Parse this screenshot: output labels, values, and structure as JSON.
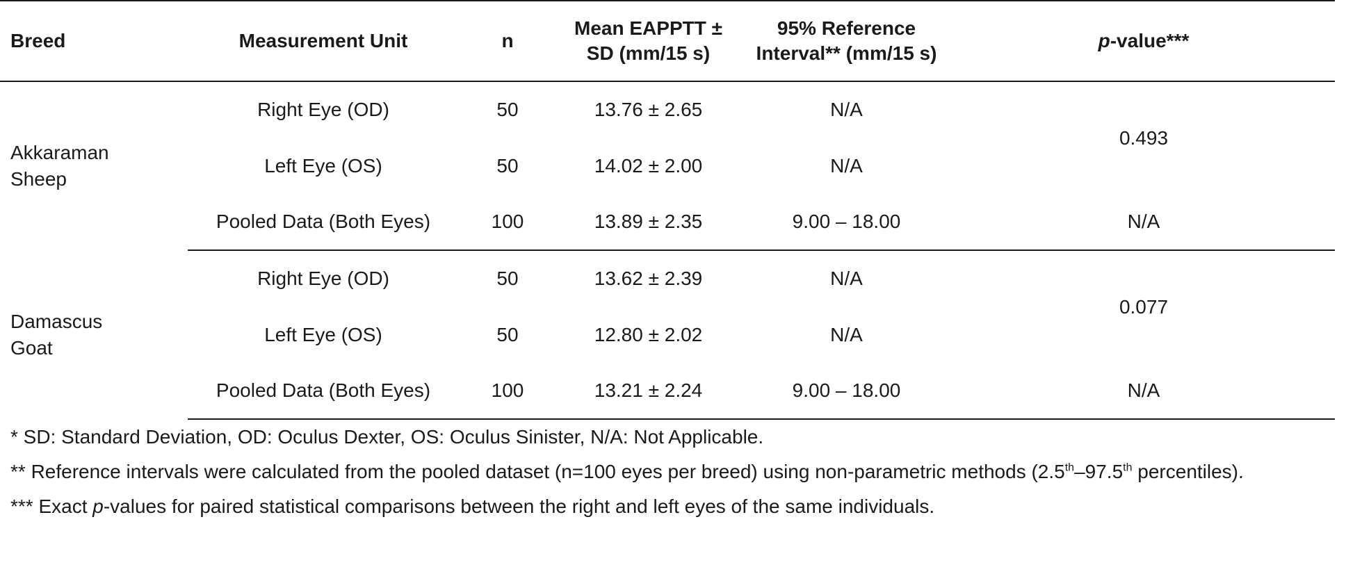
{
  "table": {
    "headers": {
      "breed": "Breed",
      "unit": "Measurement Unit",
      "n": "n",
      "mean_line1": "Mean EAPPTT ±",
      "mean_line2": "SD (mm/15 s)",
      "ri_line1": "95% Reference",
      "ri_line2": "Interval** (mm/15 s)",
      "p_italic": "p",
      "p_rest": "-value***"
    },
    "groups": [
      {
        "breed_line1": "Akkaraman",
        "breed_line2": "Sheep",
        "p_paired": "0.493",
        "rows": [
          {
            "unit": "Right Eye (OD)",
            "n": "50",
            "mean": "13.76 ± 2.65",
            "ri": "N/A"
          },
          {
            "unit": "Left Eye (OS)",
            "n": "50",
            "mean": "14.02 ± 2.00",
            "ri": "N/A"
          },
          {
            "unit": "Pooled Data (Both Eyes)",
            "n": "100",
            "mean": "13.89 ± 2.35",
            "ri": "9.00 – 18.00",
            "p": "N/A"
          }
        ]
      },
      {
        "breed_line1": "Damascus",
        "breed_line2": "Goat",
        "p_paired": "0.077",
        "rows": [
          {
            "unit": "Right Eye (OD)",
            "n": "50",
            "mean": "13.62 ± 2.39",
            "ri": "N/A"
          },
          {
            "unit": "Left Eye (OS)",
            "n": "50",
            "mean": "12.80 ± 2.02",
            "ri": "N/A"
          },
          {
            "unit": "Pooled Data (Both Eyes)",
            "n": "100",
            "mean": "13.21 ± 2.24",
            "ri": "9.00 – 18.00",
            "p": "N/A"
          }
        ]
      }
    ]
  },
  "notes": {
    "note1": "* SD: Standard Deviation, OD: Oculus Dexter, OS: Oculus Sinister, N/A: Not Applicable.",
    "note2_pre": "** Reference intervals were calculated from the pooled dataset (n=100 eyes per breed) using non-parametric methods (2.5",
    "note2_sup1": "th",
    "note2_mid": "–97.5",
    "note2_sup2": "th",
    "note2_post": " percentiles).",
    "note3_pre": "*** Exact ",
    "note3_italic": "p",
    "note3_post": "-values for paired statistical comparisons between the right and left eyes of the same individuals."
  }
}
